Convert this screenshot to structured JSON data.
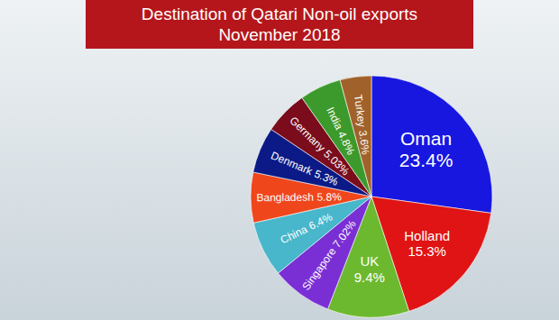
{
  "chart_data": {
    "type": "pie",
    "title": "Destination of Qatari Non-oil exports",
    "subtitle": "November 2018",
    "categories": [
      "Oman",
      "Holland",
      "UK",
      "Singapore",
      "China",
      "Bangladesh",
      "Denmark",
      "Germany",
      "India",
      "Turkey"
    ],
    "values": [
      23.4,
      15.3,
      9.4,
      7.02,
      6.4,
      5.8,
      5.3,
      5.03,
      4.8,
      3.6
    ],
    "value_labels": [
      "23.4%",
      "15.3%",
      "9.4%",
      "7.02%",
      "6.4%",
      "5.8%",
      "5.3%",
      "5.03%",
      "4.8%",
      "3.6%"
    ],
    "colors": [
      "#1717e0",
      "#e01414",
      "#6cb92f",
      "#7a2fd4",
      "#48b6cb",
      "#f0461c",
      "#0b1a86",
      "#7a0c1c",
      "#3c9a2c",
      "#a0622a"
    ],
    "data_labels": true
  }
}
